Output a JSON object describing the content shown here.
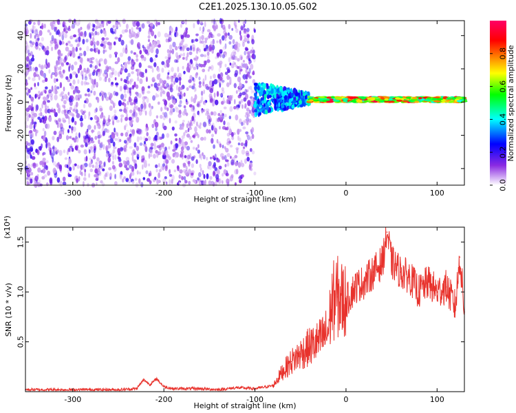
{
  "title": "C2E1.2025.130.10.05.G02",
  "chart_data": [
    {
      "type": "heatmap",
      "xlabel": "Height of straight line (km)",
      "ylabel": "Frequency (Hz)",
      "xlim": [
        -352,
        130
      ],
      "ylim": [
        -50,
        49
      ],
      "xticks": [
        -300,
        -200,
        -100,
        0,
        100
      ],
      "yticks": [
        -40,
        -20,
        0,
        20,
        40
      ],
      "colorbar": {
        "label": "Normalized spectral amplitude",
        "range": [
          0,
          1
        ],
        "ticks": [
          "0.0",
          "0.2",
          "0.4",
          "0.6",
          "0.8"
        ],
        "colors": [
          "#ffffff",
          "#8a2be2",
          "#0000ff",
          "#00ffff",
          "#00ff00",
          "#ffff00",
          "#ff8000",
          "#ff0000",
          "#ff0066"
        ]
      },
      "regions": [
        {
          "x": [
            -352,
            -100
          ],
          "freq": [
            -50,
            49
          ],
          "amplitude": [
            0.05,
            0.2
          ],
          "description_key": "scattered"
        },
        {
          "x": [
            -100,
            -40
          ],
          "freq": [
            -8,
            12
          ],
          "amplitude": [
            0.2,
            0.45
          ],
          "description_key": "transition"
        },
        {
          "x": [
            -40,
            130
          ],
          "freq": [
            0,
            3
          ],
          "amplitude": [
            0.4,
            0.95
          ],
          "description_key": "band"
        }
      ]
    },
    {
      "type": "line",
      "xlabel": "Height of straight line (km)",
      "ylabel": "SNR (10 * v/v)",
      "scale_label": "(x10⁴)",
      "xlim": [
        -352,
        130
      ],
      "ylim": [
        0,
        1.65
      ],
      "xticks": [
        -300,
        -200,
        -100,
        0,
        100
      ],
      "yticks": [
        0.5,
        1.0,
        1.5
      ],
      "ytick_labels": [
        "0.5",
        "1.0",
        "1.5"
      ],
      "line_color": "#e8322c",
      "series": [
        {
          "x": [
            -352,
            -300,
            -250,
            -230,
            -222,
            -215,
            -208,
            -200,
            -190,
            -180,
            -160,
            -140,
            -120,
            -100,
            -80,
            -70,
            -60,
            -50,
            -40,
            -30,
            -20,
            -15,
            -10,
            0,
            10,
            20,
            30,
            40,
            45,
            50,
            60,
            70,
            80,
            90,
            100,
            110,
            120,
            125,
            130
          ],
          "y": [
            0.02,
            0.02,
            0.02,
            0.03,
            0.12,
            0.07,
            0.13,
            0.05,
            0.03,
            0.03,
            0.03,
            0.02,
            0.04,
            0.03,
            0.06,
            0.2,
            0.3,
            0.38,
            0.45,
            0.5,
            0.6,
            0.9,
            0.95,
            0.9,
            1.05,
            1.1,
            1.2,
            1.3,
            1.6,
            1.3,
            1.2,
            1.15,
            1.0,
            1.1,
            1.0,
            1.05,
            0.85,
            1.35,
            0.8
          ]
        }
      ]
    }
  ]
}
